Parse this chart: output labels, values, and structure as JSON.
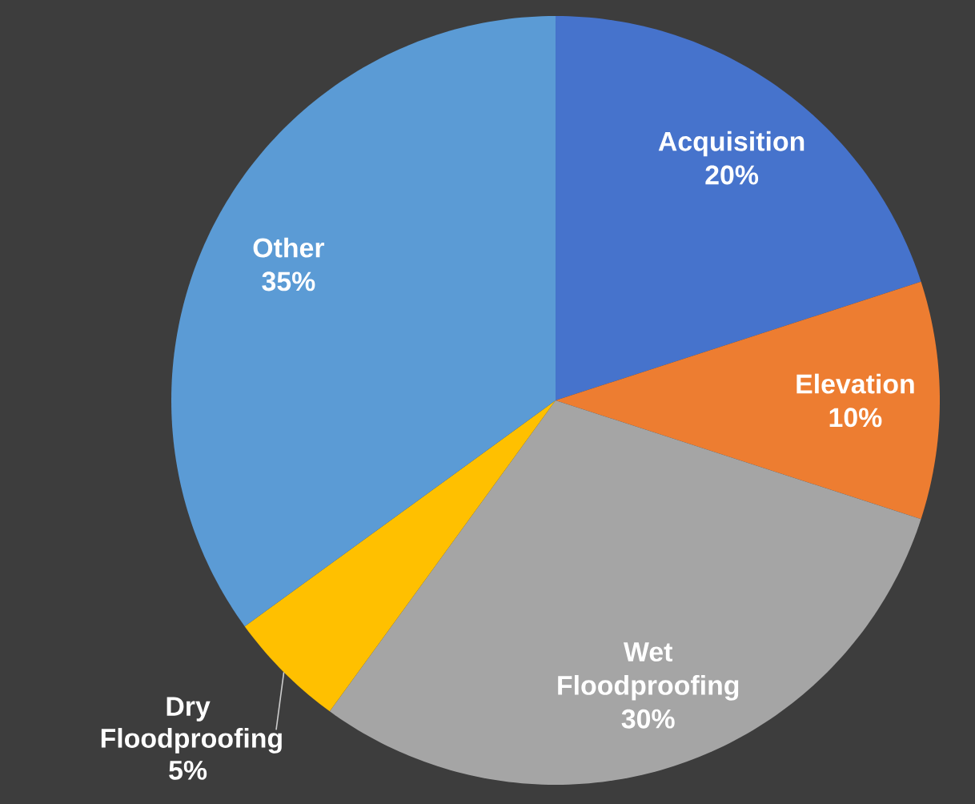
{
  "chart_data": {
    "type": "pie",
    "categories": [
      "Acquisition",
      "Elevation",
      "Wet Floodproofing",
      "Dry Floodproofing",
      "Other"
    ],
    "values": [
      20,
      10,
      30,
      5,
      35
    ],
    "value_labels": [
      "20%",
      "10%",
      "30%",
      "5%",
      "35%"
    ],
    "colors": [
      "#4673cc",
      "#ed7d31",
      "#a5a5a5",
      "#ffc000",
      "#5b9bd5"
    ]
  }
}
